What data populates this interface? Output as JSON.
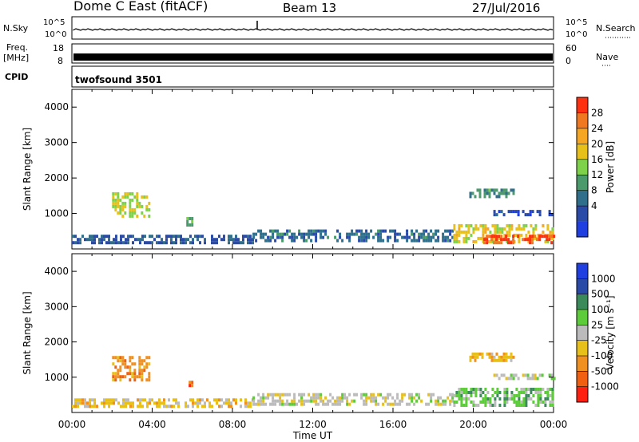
{
  "header": {
    "title": "Dome C East (fitACF)",
    "beam": "Beam 13",
    "date": "27/Jul/2016"
  },
  "aux": {
    "nsky_label": "N.Sky",
    "nsearch_label": "N.Search",
    "freq_label_1": "Freq.",
    "freq_label_2": "[MHz]",
    "nave_label": "Nave",
    "cpid_label": "CPID",
    "cpid_name": "twofsound",
    "cpid_value": "3501",
    "noise_ticks": [
      "10^5",
      "10^0"
    ],
    "freq_ticks_left": [
      "18",
      "8"
    ],
    "freq_ticks_right": [
      "60",
      "0"
    ]
  },
  "colors": {
    "power": [
      "#1f3fe0",
      "#2a4aa8",
      "#2f6f8c",
      "#4a9a6c",
      "#7ed24a",
      "#e8c01a",
      "#f5a623",
      "#f07820",
      "#ff3010"
    ],
    "velocity": [
      "#1f3fe0",
      "#2a4aa8",
      "#3a8a5a",
      "#5ccc3a",
      "#bbbbbb",
      "#e8c01a",
      "#f09020",
      "#f06010",
      "#ff2010"
    ]
  },
  "chart_data": [
    {
      "type": "heatmap",
      "name": "power",
      "ylabel": "Slant Range [km]",
      "yticks": [
        "4000",
        "3000",
        "2000",
        "1000"
      ],
      "ylim": [
        0,
        4500
      ],
      "xlim_hours": [
        0,
        24
      ],
      "colorbar": {
        "label": "Power [dB]",
        "ticks": [
          "28",
          "24",
          "20",
          "16",
          "12",
          "8",
          "4"
        ],
        "range": [
          0,
          32
        ]
      },
      "regions": [
        {
          "t0": 2.0,
          "t1": 3.8,
          "r0": 900,
          "r1": 1600,
          "level": 0.55
        },
        {
          "t0": 5.7,
          "t1": 6.0,
          "r0": 700,
          "r1": 900,
          "level": 0.4
        },
        {
          "t0": 0.0,
          "t1": 9.0,
          "r0": 200,
          "r1": 400,
          "level": 0.2
        },
        {
          "t0": 9.0,
          "t1": 19.0,
          "r0": 200,
          "r1": 550,
          "level": 0.25
        },
        {
          "t0": 19.0,
          "t1": 24.0,
          "r0": 200,
          "r1": 700,
          "level": 0.6
        },
        {
          "t0": 20.5,
          "t1": 24.0,
          "r0": 200,
          "r1": 400,
          "level": 0.92
        },
        {
          "t0": 21.0,
          "t1": 24.0,
          "r0": 950,
          "r1": 1100,
          "level": 0.15
        },
        {
          "t0": 19.8,
          "t1": 22.0,
          "r0": 1500,
          "r1": 1700,
          "level": 0.35
        }
      ]
    },
    {
      "type": "heatmap",
      "name": "velocity",
      "ylabel": "Slant Range [km]",
      "yticks": [
        "4000",
        "3000",
        "2000",
        "1000"
      ],
      "ylim": [
        0,
        4500
      ],
      "xlim_hours": [
        0,
        24
      ],
      "xticks": [
        "00:00",
        "04:00",
        "08:00",
        "12:00",
        "16:00",
        "20:00",
        "00:00"
      ],
      "xlabel": "Time UT",
      "colorbar": {
        "label": "Velocity [m s⁻¹]",
        "ticks": [
          "1000",
          "500",
          "100",
          "25",
          "-25",
          "-100",
          "-500",
          "-1000"
        ]
      },
      "regions": [
        {
          "t0": 2.0,
          "t1": 3.8,
          "r0": 900,
          "r1": 1600,
          "level": 0.72
        },
        {
          "t0": 5.7,
          "t1": 6.0,
          "r0": 700,
          "r1": 900,
          "level": 0.82
        },
        {
          "t0": 0.0,
          "t1": 9.0,
          "r0": 200,
          "r1": 400,
          "level": 0.6
        },
        {
          "t0": 9.0,
          "t1": 19.0,
          "r0": 200,
          "r1": 550,
          "level": 0.5
        },
        {
          "t0": 19.0,
          "t1": 24.0,
          "r0": 200,
          "r1": 700,
          "level": 0.38
        },
        {
          "t0": 21.0,
          "t1": 24.0,
          "r0": 950,
          "r1": 1100,
          "level": 0.48
        },
        {
          "t0": 19.8,
          "t1": 22.0,
          "r0": 1500,
          "r1": 1700,
          "level": 0.62
        }
      ]
    }
  ]
}
